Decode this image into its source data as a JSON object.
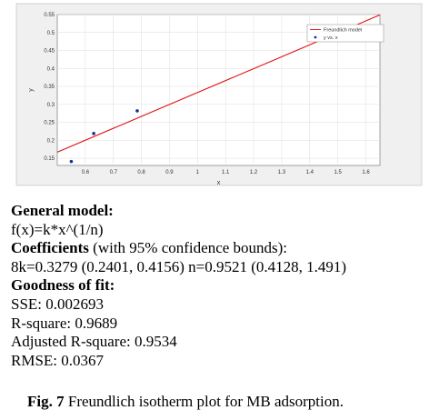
{
  "chart_data": {
    "type": "scatter",
    "xlabel": "x",
    "ylabel": "y",
    "xlim": [
      0.5,
      1.65
    ],
    "ylim": [
      0.13,
      0.55
    ],
    "xticks": [
      "0.6",
      "0.7",
      "0.8",
      "0.9",
      "1",
      "1.1",
      "1.2",
      "1.3",
      "1.4",
      "1.5",
      "1.6"
    ],
    "yticks": [
      "0.15",
      "0.2",
      "0.25",
      "0.3",
      "0.35",
      "0.4",
      "0.45",
      "0.5",
      "0.55"
    ],
    "grid": true,
    "legend_position": "top-right",
    "series": [
      {
        "name": "y vs. x",
        "kind": "scatter",
        "color": "#1f2f8f",
        "x": [
          0.55,
          0.63,
          0.785,
          1.48
        ],
        "y": [
          0.141,
          0.219,
          0.282,
          0.501
        ]
      },
      {
        "name": "Freundlich model",
        "kind": "line",
        "color": "#e01010",
        "x": [
          0.5,
          0.75,
          1.0,
          1.25,
          1.5,
          1.65
        ],
        "y": [
          0.167,
          0.25,
          0.333,
          0.416,
          0.499,
          0.549
        ]
      }
    ]
  },
  "text": {
    "general_model_label": "General model:",
    "formula": "f(x)=k*x^(1/n)",
    "coefficients_label": "Coefficients",
    "coefficients_suffix": " (with 95% confidence bounds):",
    "coefficients_values": "8k=0.3279 (0.2401, 0.4156) n=0.9521 (0.4128, 1.491)",
    "goodness_label": "Goodness of fit:",
    "sse": "SSE: 0.002693",
    "rsquare": "R-square: 0.9689",
    "adj_rsquare": "Adjusted R-square: 0.9534",
    "rmse": "RMSE: 0.0367"
  },
  "caption": {
    "label": "Fig. 7",
    "text": " Freundlich isotherm plot for MB adsorption."
  }
}
